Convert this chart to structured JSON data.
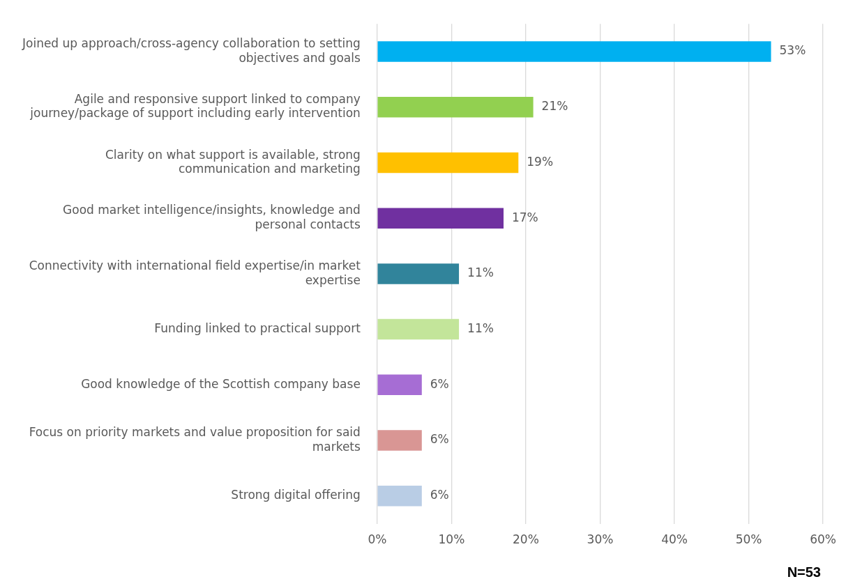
{
  "chart_data": {
    "type": "bar",
    "orientation": "horizontal",
    "categories": [
      "Joined up approach/cross-agency collaboration to setting objectives and goals",
      "Agile and responsive support linked to company journey/package of support including early intervention",
      "Clarity on what support is available, strong communication and marketing",
      "Good market intelligence/insights, knowledge and personal contacts",
      "Connectivity with international field expertise/in market expertise",
      "Funding linked to practical support",
      "Good knowledge of the Scottish company base",
      "Focus on priority markets and value proposition for said markets",
      "Strong digital offering"
    ],
    "values": [
      53,
      21,
      19,
      17,
      11,
      11,
      6,
      6,
      6
    ],
    "colors": [
      "#00b0f0",
      "#92d050",
      "#ffc000",
      "#7030a0",
      "#31849b",
      "#c3e59a",
      "#a66dd4",
      "#d99694",
      "#b9cde5"
    ],
    "value_labels": [
      "53%",
      "21%",
      "19%",
      "17%",
      "11%",
      "11%",
      "6%",
      "6%",
      "6%"
    ],
    "xlim": [
      0,
      60
    ],
    "xticks": [
      {
        "value": 0,
        "label": "0%"
      },
      {
        "value": 10,
        "label": "10%"
      },
      {
        "value": 20,
        "label": "20%"
      },
      {
        "value": 30,
        "label": "30%"
      },
      {
        "value": 40,
        "label": "40%"
      },
      {
        "value": 50,
        "label": "50%"
      },
      {
        "value": 60,
        "label": "60%"
      }
    ],
    "grid": "x",
    "legend": false,
    "annotations": [
      "N=53"
    ]
  }
}
